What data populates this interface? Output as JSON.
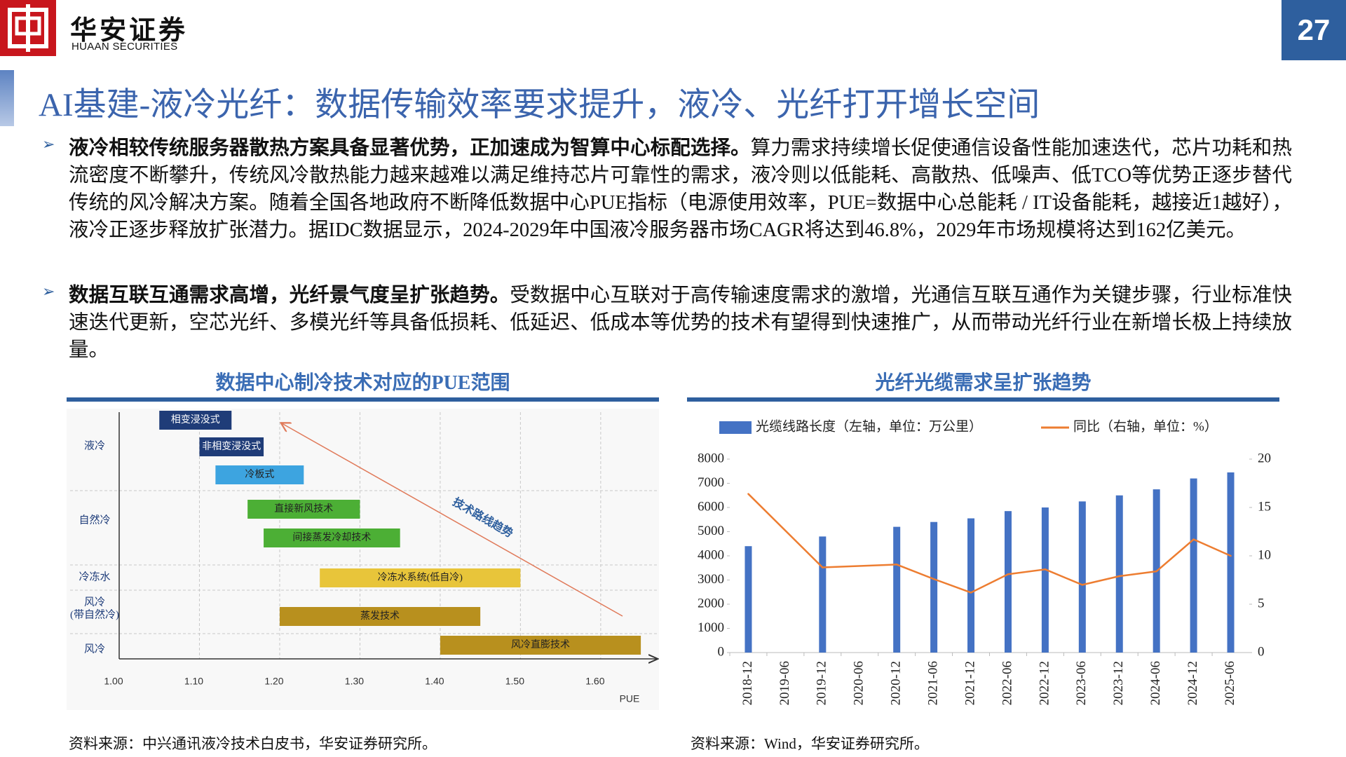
{
  "header": {
    "logo_text": "华安证券",
    "logo_subtext": "HUAAN SECURITIES",
    "page_number": "27"
  },
  "title": "AI基建-液冷光纤：数据传输效率要求提升，液冷、光纤打开增长空间",
  "bullets": [
    {
      "bold": "液冷相较传统服务器散热方案具备显著优势，正加速成为智算中心标配选择。",
      "text": "算力需求持续增长促使通信设备性能加速迭代，芯片功耗和热流密度不断攀升，传统风冷散热能力越来越难以满足维持芯片可靠性的需求，液冷则以低能耗、高散热、低噪声、低TCO等优势正逐步替代传统的风冷解决方案。随着全国各地政府不断降低数据中心PUE指标（电源使用效率，PUE=数据中心总能耗 / IT设备能耗，越接近1越好），液冷正逐步释放扩张潜力。据IDC数据显示，2024-2029年中国液冷服务器市场CAGR将达到46.8%，2029年市场规模将达到162亿美元。"
    },
    {
      "bold": "数据互联互通需求高增，光纤景气度呈扩张趋势。",
      "text": "受数据中心互联对于高传输速度需求的激增，光通信互联互通作为关键步骤，行业标准快速迭代更新，空芯光纤、多模光纤等具备低损耗、低延迟、低成本等优势的技术有望得到快速推广，从而带动光纤行业在新增长极上持续放量。"
    }
  ],
  "chart_data": [
    {
      "type": "range-bar",
      "title": "数据中心制冷技术对应的PUE范围",
      "categories": [
        "相变浸没式",
        "非相变浸没式",
        "冷板式",
        "直接新风技术",
        "间接蒸发冷却技术",
        "冷冻水系统(低自冷)",
        "蒸发技术",
        "风冷直膨技术"
      ],
      "low": [
        1.05,
        1.1,
        1.12,
        1.16,
        1.18,
        1.25,
        1.2,
        1.4
      ],
      "high": [
        1.14,
        1.18,
        1.23,
        1.3,
        1.35,
        1.5,
        1.45,
        1.65
      ],
      "colors": [
        "#1f3c78",
        "#1f3c78",
        "#3da4e0",
        "#4caf35",
        "#4caf35",
        "#e8c53a",
        "#b8901e",
        "#b8901e"
      ],
      "groups": [
        [
          "液冷"
        ],
        [
          "自然冷"
        ],
        [
          "冷冻水"
        ],
        [
          "风冷",
          "(带自然冷)"
        ],
        [
          "风冷"
        ]
      ],
      "xlabel": "PUE",
      "annotation": "技术路线趋势",
      "xlim": [
        1.0,
        1.67
      ],
      "xticks": [
        {
          "value": 1.0,
          "label": "1.00"
        },
        {
          "value": 1.1,
          "label": "1.10"
        },
        {
          "value": 1.2,
          "label": "1.20"
        },
        {
          "value": 1.3,
          "label": "1.30"
        },
        {
          "value": 1.4,
          "label": "1.40"
        },
        {
          "value": 1.5,
          "label": "1.50"
        },
        {
          "value": 1.6,
          "label": "1.60"
        }
      ],
      "source": "资料来源：中兴通讯液冷技术白皮书，华安证券研究所。"
    },
    {
      "type": "bar-line",
      "title": "光纤光缆需求呈扩张趋势",
      "categories": [
        "2018-12",
        "2019-06",
        "2019-12",
        "2020-06",
        "2020-12",
        "2021-06",
        "2021-12",
        "2022-06",
        "2022-12",
        "2023-06",
        "2023-12",
        "2024-06",
        "2024-12",
        "2025-06"
      ],
      "series": [
        {
          "name": "光缆线路长度（左轴，单位：万公里）",
          "type": "bar",
          "color": "#4472c4",
          "values": [
            4400,
            null,
            4800,
            null,
            5200,
            5400,
            5550,
            5850,
            6000,
            6250,
            6500,
            6750,
            7200,
            7450
          ]
        },
        {
          "name": "同比（右轴，单位：%）",
          "type": "line",
          "axis": "y2",
          "color": "#ed7d31",
          "values": [
            16.4,
            null,
            8.8,
            null,
            9.1,
            7.6,
            6.2,
            8.1,
            8.6,
            7.0,
            7.9,
            8.4,
            11.7,
            10.0
          ]
        }
      ],
      "ylim": [
        0,
        8000
      ],
      "yticks": [
        0,
        1000,
        2000,
        3000,
        4000,
        5000,
        6000,
        7000,
        8000
      ],
      "y2lim": [
        0,
        20
      ],
      "y2ticks": [
        0,
        5,
        10,
        15,
        20
      ],
      "source": "资料来源：Wind，华安证券研究所。"
    }
  ]
}
